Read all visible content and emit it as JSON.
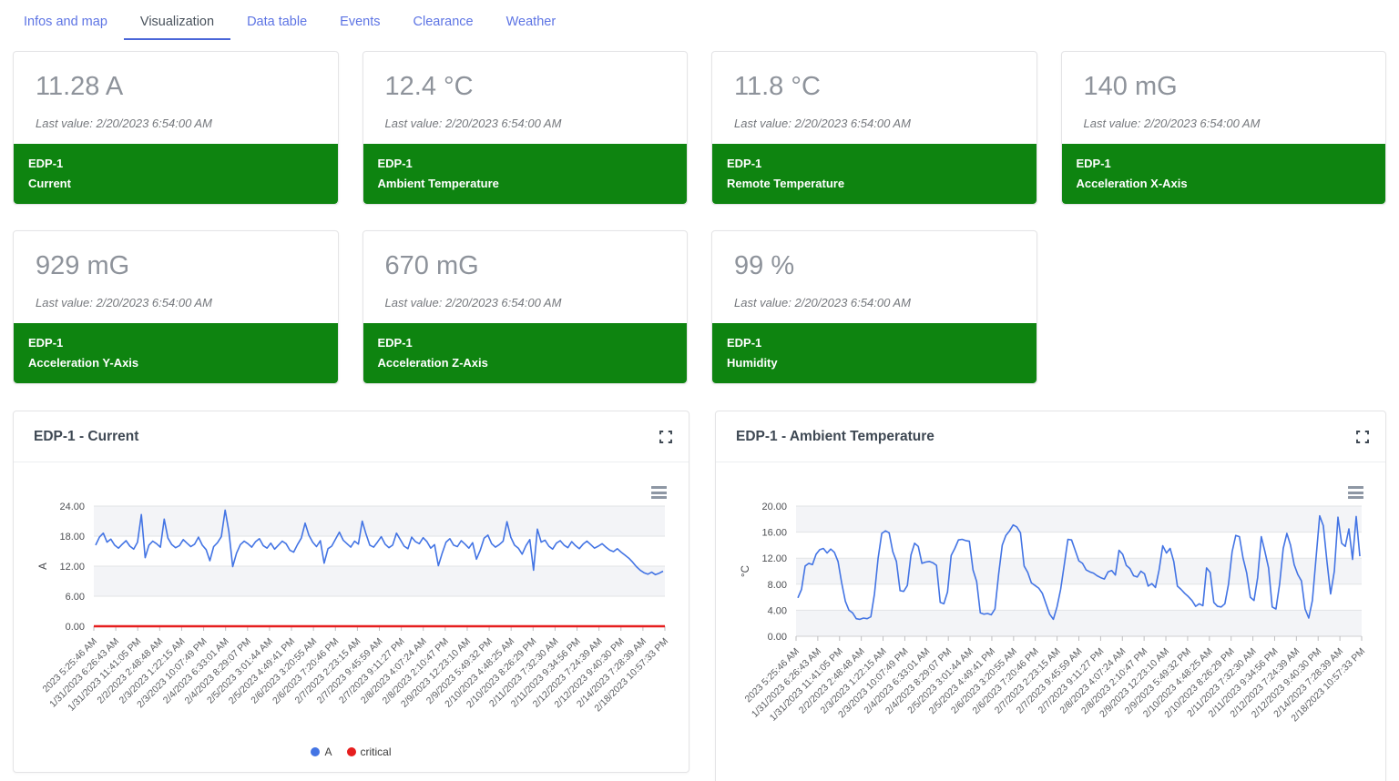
{
  "tabs": [
    {
      "label": "Infos and map",
      "active": false
    },
    {
      "label": "Visualization",
      "active": true
    },
    {
      "label": "Data table",
      "active": false
    },
    {
      "label": "Events",
      "active": false
    },
    {
      "label": "Clearance",
      "active": false
    },
    {
      "label": "Weather",
      "active": false
    }
  ],
  "colors": {
    "tab_inactive": "#5d74e4",
    "tab_active_underline": "#4a66d8",
    "kpi_footer_green": "#0e8410",
    "line_blue": "#4374e4",
    "critical_red": "#e61e1e",
    "band_gray": "#f3f4f7",
    "grid_line": "#e2e3e6"
  },
  "kpi_cards": [
    {
      "value": "11.28 A",
      "last_value": "Last value: 2/20/2023 6:54:00 AM",
      "device": "EDP-1",
      "metric": "Current"
    },
    {
      "value": "12.4 °C",
      "last_value": "Last value: 2/20/2023 6:54:00 AM",
      "device": "EDP-1",
      "metric": "Ambient Temperature"
    },
    {
      "value": "11.8 °C",
      "last_value": "Last value: 2/20/2023 6:54:00 AM",
      "device": "EDP-1",
      "metric": "Remote Temperature"
    },
    {
      "value": "140 mG",
      "last_value": "Last value: 2/20/2023 6:54:00 AM",
      "device": "EDP-1",
      "metric": "Acceleration X-Axis"
    },
    {
      "value": "929 mG",
      "last_value": "Last value: 2/20/2023 6:54:00 AM",
      "device": "EDP-1",
      "metric": "Acceleration Y-Axis"
    },
    {
      "value": "670 mG",
      "last_value": "Last value: 2/20/2023 6:54:00 AM",
      "device": "EDP-1",
      "metric": "Acceleration Z-Axis"
    },
    {
      "value": "99 %",
      "last_value": "Last value: 2/20/2023 6:54:00 AM",
      "device": "EDP-1",
      "metric": "Humidity"
    }
  ],
  "x_labels": [
    "2023 5:25:46 AM",
    "1/31/2023 6:26:43 AM",
    "1/31/2023 11:41:05 PM",
    "2/2/2023 2:48:48 AM",
    "2/3/2023 1:22:15 AM",
    "2/3/2023 10:07:49 PM",
    "2/4/2023 6:33:01 AM",
    "2/4/2023 8:29:07 PM",
    "2/5/2023 3:01:44 AM",
    "2/5/2023 4:49:41 PM",
    "2/6/2023 3:20:55 AM",
    "2/6/2023 7:20:46 PM",
    "2/7/2023 2:23:15 AM",
    "2/7/2023 9:45:59 AM",
    "2/7/2023 9:11:27 PM",
    "2/8/2023 4:07:24 AM",
    "2/8/2023 2:10:47 PM",
    "2/9/2023 12:23:10 AM",
    "2/9/2023 5:49:32 PM",
    "2/10/2023 4:48:25 AM",
    "2/10/2023 8:26:29 PM",
    "2/11/2023 7:32:30 AM",
    "2/11/2023 9:34:56 PM",
    "2/12/2023 7:24:39 AM",
    "2/12/2023 9:40:30 PM",
    "2/14/2023 7:28:39 AM",
    "2/18/2023 10:57:33 PM"
  ],
  "chart_data": [
    {
      "type": "line",
      "title": "EDP-1 - Current",
      "ylabel": "A",
      "ylim": [
        0,
        24
      ],
      "yticks": [
        0,
        6,
        12,
        18,
        24
      ],
      "ytick_labels": [
        "0.00",
        "6.00",
        "12.00",
        "18.00",
        "24.00"
      ],
      "grid": true,
      "legend_position": "bottom",
      "legend": [
        {
          "label": "A",
          "color": "#4374e4"
        },
        {
          "label": "critical",
          "color": "#e61e1e"
        }
      ],
      "threshold": {
        "name": "critical",
        "value": 0,
        "color": "#e61e1e"
      },
      "series": [
        {
          "name": "A",
          "color": "#4374e4",
          "values": [
            16.2,
            17.8,
            18.6,
            16.8,
            17.4,
            16.2,
            15.6,
            16.4,
            17.1,
            16.0,
            15.4,
            16.8,
            22.3,
            13.7,
            16.2,
            17.0,
            16.5,
            15.8,
            21.4,
            17.6,
            16.3,
            15.7,
            16.1,
            17.3,
            16.6,
            15.9,
            16.4,
            17.8,
            16.2,
            15.3,
            13.1,
            15.9,
            16.7,
            17.9,
            23.2,
            18.9,
            11.9,
            14.6,
            16.3,
            17.0,
            16.5,
            15.8,
            16.9,
            17.5,
            16.1,
            15.6,
            16.6,
            15.4,
            16.2,
            17.0,
            16.5,
            15.2,
            14.8,
            16.3,
            17.6,
            20.6,
            18.2,
            16.8,
            15.9,
            17.1,
            12.6,
            15.5,
            16.0,
            17.4,
            18.8,
            17.2,
            16.5,
            15.8,
            17.0,
            16.4,
            21.0,
            18.4,
            16.2,
            15.8,
            16.8,
            17.9,
            16.4,
            15.7,
            16.2,
            18.6,
            17.3,
            16.0,
            15.5,
            17.8,
            16.9,
            16.5,
            17.7,
            16.9,
            15.6,
            16.3,
            12.1,
            14.6,
            16.8,
            17.5,
            16.2,
            15.9,
            17.1,
            16.4,
            15.6,
            16.7,
            13.4,
            15.2,
            17.6,
            18.2,
            16.5,
            15.8,
            16.3,
            17.0,
            20.9,
            17.8,
            16.2,
            15.6,
            14.4,
            16.1,
            17.3,
            11.2,
            19.4,
            16.8,
            17.2,
            16.0,
            15.4,
            16.6,
            17.1,
            16.2,
            15.7,
            16.9,
            16.1,
            15.5,
            16.4,
            17.0,
            16.3,
            15.6,
            16.0,
            16.5,
            15.8,
            15.2,
            14.9,
            15.5,
            14.8,
            14.2,
            13.6,
            12.8,
            11.9,
            11.2,
            10.7,
            10.4,
            10.8,
            10.3,
            10.6,
            11.0
          ]
        }
      ]
    },
    {
      "type": "line",
      "title": "EDP-1 - Ambient Temperature",
      "ylabel": "°C",
      "ylim": [
        0,
        20
      ],
      "yticks": [
        0,
        4,
        8,
        12,
        16,
        20
      ],
      "ytick_labels": [
        "0.00",
        "4.00",
        "8.00",
        "12.00",
        "16.00",
        "20.00"
      ],
      "grid": true,
      "legend": [],
      "series": [
        {
          "name": "°C",
          "color": "#4374e4",
          "values": [
            5.9,
            7.2,
            10.8,
            11.2,
            11.0,
            12.6,
            13.3,
            13.5,
            12.8,
            13.4,
            12.9,
            11.5,
            8.2,
            5.4,
            4.0,
            3.6,
            2.7,
            2.6,
            2.8,
            2.7,
            3.0,
            6.5,
            12.0,
            15.8,
            16.2,
            15.9,
            13.0,
            11.5,
            7.0,
            6.9,
            7.8,
            12.5,
            14.3,
            13.8,
            11.2,
            11.4,
            11.5,
            11.3,
            10.9,
            5.2,
            5.0,
            6.8,
            12.4,
            13.5,
            14.8,
            14.9,
            14.7,
            14.6,
            10.2,
            8.4,
            3.6,
            3.4,
            3.5,
            3.3,
            4.2,
            9.5,
            14.0,
            15.5,
            16.2,
            17.1,
            16.8,
            15.9,
            10.8,
            9.8,
            8.2,
            7.8,
            7.4,
            6.6,
            5.0,
            3.4,
            2.6,
            4.5,
            7.2,
            11.0,
            14.9,
            14.8,
            13.2,
            11.6,
            11.2,
            10.2,
            9.9,
            9.7,
            9.3,
            9.0,
            8.8,
            9.9,
            10.1,
            9.4,
            13.2,
            12.6,
            10.9,
            10.4,
            9.3,
            9.1,
            10.0,
            9.6,
            7.7,
            8.1,
            7.5,
            10.2,
            13.9,
            12.8,
            13.5,
            11.5,
            7.7,
            7.2,
            6.6,
            6.1,
            5.5,
            4.6,
            5.0,
            4.7,
            10.5,
            9.8,
            5.2,
            4.6,
            4.5,
            5.0,
            8.0,
            13.0,
            15.5,
            15.3,
            12.0,
            9.7,
            6.0,
            5.5,
            9.0,
            15.3,
            13.0,
            10.5,
            4.5,
            4.2,
            8.0,
            13.5,
            15.8,
            14.0,
            11.0,
            9.5,
            8.5,
            4.2,
            2.8,
            5.5,
            12.0,
            18.5,
            17.0,
            11.5,
            6.5,
            10.0,
            18.3,
            14.3,
            13.8,
            16.5,
            11.8,
            18.4,
            12.3
          ]
        }
      ]
    }
  ]
}
